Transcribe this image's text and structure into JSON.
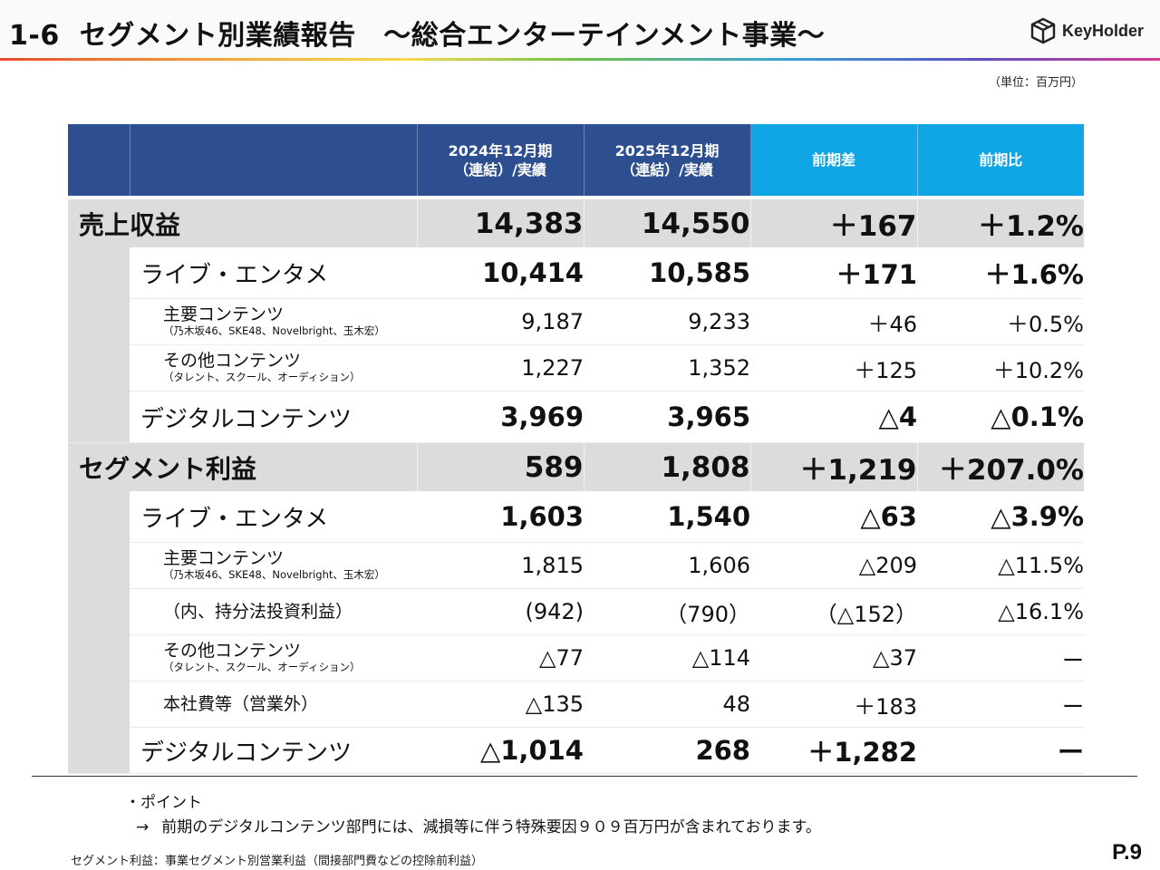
{
  "header": {
    "section_number": "1-6",
    "title": "セグメント別業績報告　～総合エンターテインメント事業～",
    "logo_text": "KeyHolder"
  },
  "unit_note": "（単位：百万円）",
  "table": {
    "columns": {
      "fy2024": [
        "2024年12月期",
        "（連結）/実績"
      ],
      "fy2025": [
        "2025年12月期",
        "（連結）/実績"
      ],
      "diff": "前期差",
      "ratio": "前期比"
    },
    "rows": [
      {
        "label": "売上収益",
        "v2024": "14,383",
        "v2025": "14,550",
        "diff": "＋167",
        "ratio": "＋1.2%"
      },
      {
        "label": "ライブ・エンタメ",
        "v2024": "10,414",
        "v2025": "10,585",
        "diff": "＋171",
        "ratio": "＋1.6%"
      },
      {
        "label": "主要コンテンツ",
        "note": "（乃木坂46、SKE48、Novelbright、玉木宏）",
        "v2024": "9,187",
        "v2025": "9,233",
        "diff": "＋46",
        "ratio": "＋0.5%"
      },
      {
        "label": "その他コンテンツ",
        "note": "（タレント、スクール、オーディション）",
        "v2024": "1,227",
        "v2025": "1,352",
        "diff": "＋125",
        "ratio": "＋10.2%"
      },
      {
        "label": "デジタルコンテンツ",
        "v2024": "3,969",
        "v2025": "3,965",
        "diff": "△4",
        "ratio": "△0.1%"
      },
      {
        "label": "セグメント利益",
        "v2024": "589",
        "v2025": "1,808",
        "diff": "＋1,219",
        "ratio": "＋207.0%"
      },
      {
        "label": "ライブ・エンタメ",
        "v2024": "1,603",
        "v2025": "1,540",
        "diff": "△63",
        "ratio": "△3.9%"
      },
      {
        "label": "主要コンテンツ",
        "note": "（乃木坂46、SKE48、Novelbright、玉木宏）",
        "v2024": "1,815",
        "v2025": "1,606",
        "diff": "△209",
        "ratio": "△11.5%"
      },
      {
        "label": "（内、持分法投資利益）",
        "v2024": "(942)",
        "v2025": "（790）",
        "diff": "（△152）",
        "ratio": "△16.1%"
      },
      {
        "label": "その他コンテンツ",
        "note": "（タレント、スクール、オーディション）",
        "v2024": "△77",
        "v2025": "△114",
        "diff": "△37",
        "ratio": "ー"
      },
      {
        "label": "本社費等（営業外）",
        "v2024": "△135",
        "v2025": "48",
        "diff": "＋183",
        "ratio": "ー"
      },
      {
        "label": "デジタルコンテンツ",
        "v2024": "△1,014",
        "v2025": "268",
        "diff": "＋1,282",
        "ratio": "ー"
      }
    ]
  },
  "point": {
    "heading": "・ポイント",
    "arrow": "→",
    "text": "前期のデジタルコンテンツ部門には、減損等に伴う特殊要因９０９百万円が含まれております。"
  },
  "footnote": "セグメント利益：事業セグメント別営業利益（間接部門費などの控除前利益）",
  "page_number": "P.9",
  "colors": {
    "navy_header": "#2e4f8f",
    "sky_header": "#10a5e5",
    "gray_band": "#dcdcdc"
  }
}
